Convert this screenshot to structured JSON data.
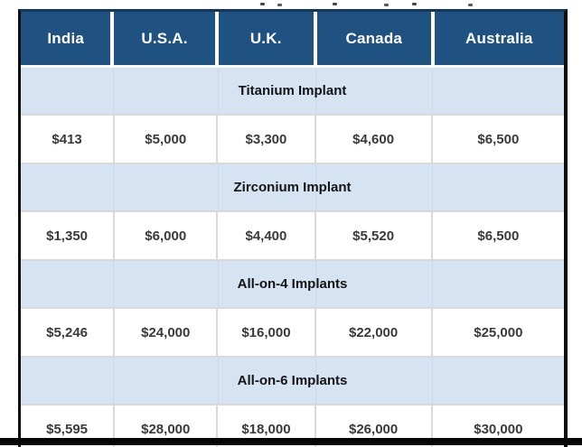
{
  "table": {
    "columns": [
      "India",
      "U.S.A.",
      "U.K.",
      "Canada",
      "Australia"
    ],
    "sections": [
      {
        "category": "Titanium Implant",
        "prices": [
          "$413",
          "$5,000",
          "$3,300",
          "$4,600",
          "$6,500"
        ]
      },
      {
        "category": "Zirconium Implant",
        "prices": [
          "$1,350",
          "$6,000",
          "$4,400",
          "$5,520",
          "$6,500"
        ]
      },
      {
        "category": "All-on-4 Implants",
        "prices": [
          "$5,246",
          "$24,000",
          "$16,000",
          "$22,000",
          "$25,000"
        ]
      },
      {
        "category": "All-on-6 Implants",
        "prices": [
          "$5,595",
          "$28,000",
          "$18,000",
          "$26,000",
          "$30,000"
        ]
      }
    ],
    "colors": {
      "header_bg": "#1F5181",
      "header_text": "#FFFFFF",
      "category_bg": "#D5E3F2",
      "category_text": "#141414",
      "value_text": "#3A3A3A",
      "grid_line": "#D9D9D9",
      "outer_border": "#0D0D0D",
      "top_border": "#16365C",
      "bottom_bar": "#060606"
    }
  },
  "chart_data": {
    "type": "table",
    "title": "",
    "currency": "USD",
    "columns": [
      "India",
      "U.S.A.",
      "U.K.",
      "Canada",
      "Australia"
    ],
    "row_groups": [
      {
        "label": "Titanium Implant",
        "values": [
          413,
          5000,
          3300,
          4600,
          6500
        ]
      },
      {
        "label": "Zirconium Implant",
        "values": [
          1350,
          6000,
          4400,
          5520,
          6500
        ]
      },
      {
        "label": "All-on-4 Implants",
        "values": [
          5246,
          24000,
          16000,
          22000,
          25000
        ]
      },
      {
        "label": "All-on-6 Implants",
        "values": [
          5595,
          28000,
          18000,
          26000,
          30000
        ]
      }
    ],
    "layout": "category banner rows (full-width, light blue) alternate with price rows; dark blue country header; bottom price row cropped by screenshot edge"
  }
}
